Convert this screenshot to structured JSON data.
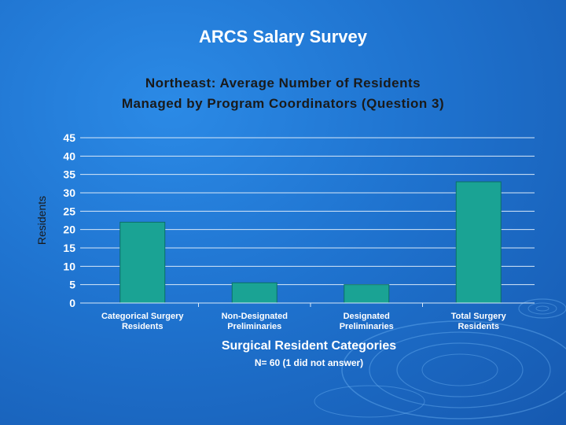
{
  "slide": {
    "title": "ARCS Salary Survey"
  },
  "colors": {
    "background": "#1f73cf",
    "bar": "#1aa394",
    "bar_stroke": "#0b6f66",
    "grid": "#d8e8f8"
  },
  "chart_data": {
    "type": "bar",
    "title_lines": [
      "Northeast: Average Number of Residents",
      "Managed by Program Coordinators (Question 3)"
    ],
    "categories": [
      [
        "Categorical Surgery",
        "Residents"
      ],
      [
        "Non-Designated",
        "Preliminaries"
      ],
      [
        "Designated",
        "Preliminaries"
      ],
      [
        "Total Surgery",
        "Residents"
      ]
    ],
    "values": [
      22,
      5.5,
      5,
      33
    ],
    "xlabel": "Surgical Resident Categories",
    "ylabel": "Residents",
    "note": "N= 60 (1 did not answer)",
    "ylim": [
      0,
      45
    ],
    "yticks": [
      0,
      5,
      10,
      15,
      20,
      25,
      30,
      35,
      40,
      45
    ],
    "grid": true,
    "legend": "none"
  }
}
